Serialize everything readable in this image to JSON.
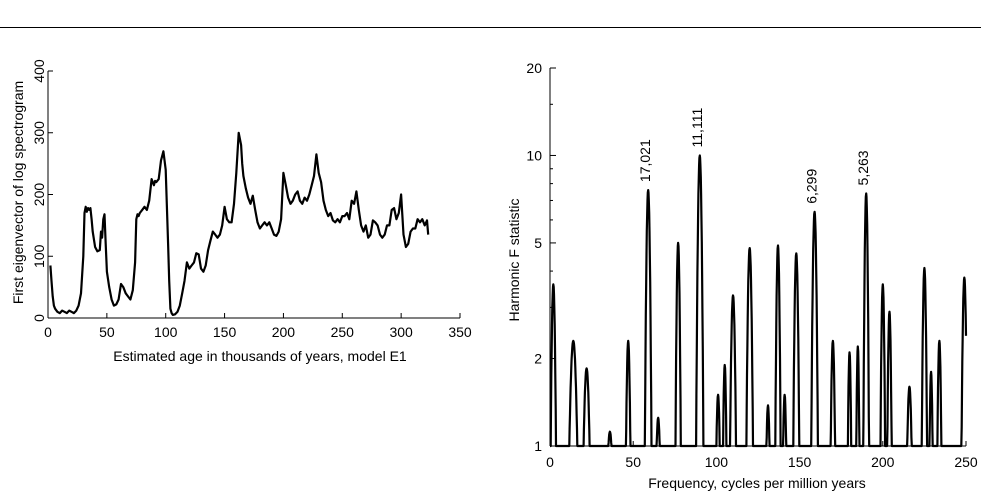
{
  "chart_data": [
    {
      "type": "line",
      "xlabel": "Estimated age in thousands of years, model E1",
      "ylabel": "First eigenvector of log spectrogram",
      "xlim": [
        0,
        350
      ],
      "ylim": [
        0,
        400
      ],
      "xticks": [
        0,
        50,
        100,
        150,
        200,
        250,
        300,
        350
      ],
      "yticks": [
        0,
        100,
        200,
        300,
        400
      ],
      "grid": false,
      "series": [
        {
          "x": [
            2,
            3,
            4,
            5,
            6,
            8,
            10,
            12,
            14,
            16,
            18,
            20,
            22,
            24,
            26,
            28,
            30,
            31,
            32,
            33,
            34,
            35,
            36,
            37,
            38,
            40,
            42,
            44,
            45,
            46,
            47,
            48,
            49,
            50,
            52,
            54,
            56,
            58,
            60,
            62,
            64,
            66,
            68,
            70,
            72,
            74,
            75,
            76,
            77,
            78,
            80,
            82,
            84,
            86,
            88,
            90,
            91,
            92,
            94,
            96,
            98,
            100,
            101,
            102,
            103,
            104,
            105,
            106,
            108,
            110,
            112,
            114,
            116,
            118,
            120,
            122,
            124,
            126,
            128,
            130,
            132,
            134,
            136,
            138,
            140,
            142,
            144,
            146,
            148,
            150,
            152,
            154,
            156,
            158,
            160,
            162,
            164,
            165,
            166,
            168,
            170,
            172,
            174,
            176,
            178,
            180,
            182,
            184,
            186,
            188,
            190,
            192,
            194,
            196,
            198,
            200,
            202,
            204,
            206,
            208,
            210,
            212,
            214,
            216,
            218,
            220,
            222,
            224,
            226,
            228,
            230,
            232,
            234,
            236,
            238,
            240,
            242,
            244,
            246,
            248,
            250,
            252,
            254,
            256,
            258,
            260,
            262,
            264,
            266,
            268,
            270,
            272,
            274,
            276,
            278,
            280,
            282,
            284,
            286,
            288,
            290,
            292,
            294,
            296,
            298,
            300,
            302,
            304,
            306,
            308,
            310,
            312,
            314,
            316,
            318,
            320,
            322,
            323
          ],
          "y": [
            85,
            60,
            35,
            20,
            15,
            10,
            8,
            12,
            10,
            8,
            12,
            10,
            8,
            12,
            20,
            40,
            100,
            170,
            180,
            172,
            178,
            175,
            178,
            160,
            140,
            115,
            108,
            110,
            140,
            130,
            160,
            168,
            120,
            75,
            50,
            30,
            20,
            22,
            30,
            55,
            50,
            40,
            35,
            30,
            45,
            90,
            160,
            168,
            165,
            170,
            175,
            180,
            175,
            190,
            225,
            215,
            222,
            220,
            225,
            255,
            270,
            240,
            180,
            120,
            60,
            15,
            8,
            5,
            6,
            10,
            20,
            40,
            60,
            90,
            80,
            85,
            90,
            105,
            103,
            80,
            75,
            85,
            110,
            125,
            140,
            135,
            130,
            135,
            150,
            180,
            160,
            155,
            155,
            185,
            235,
            300,
            280,
            250,
            230,
            210,
            195,
            185,
            198,
            175,
            155,
            145,
            150,
            155,
            150,
            155,
            145,
            135,
            133,
            140,
            160,
            235,
            215,
            195,
            185,
            190,
            200,
            205,
            190,
            185,
            195,
            190,
            200,
            215,
            230,
            265,
            235,
            220,
            190,
            175,
            165,
            170,
            158,
            155,
            160,
            155,
            165,
            165,
            170,
            160,
            190,
            185,
            205,
            175,
            150,
            140,
            150,
            130,
            135,
            158,
            155,
            150,
            135,
            130,
            135,
            150,
            150,
            175,
            178,
            160,
            170,
            200,
            135,
            115,
            120,
            140,
            145,
            145,
            160,
            155,
            160,
            150,
            158,
            135
          ]
        }
      ]
    },
    {
      "type": "line",
      "xlabel": "Frequency, cycles per million years",
      "ylabel": "Harmonic F statistic",
      "xlim": [
        0,
        250
      ],
      "ylim": [
        1,
        20
      ],
      "yscale": "log",
      "xticks": [
        0,
        50,
        100,
        150,
        200,
        250
      ],
      "yticks": [
        1,
        2,
        5,
        10,
        20
      ],
      "grid": false,
      "annotations": [
        {
          "text": "17,021",
          "x": 59,
          "y": 7.6
        },
        {
          "text": "11,111",
          "x": 90,
          "y": 10.0
        },
        {
          "text": "6,299",
          "x": 159,
          "y": 6.4
        },
        {
          "text": "5,263",
          "x": 190,
          "y": 7.4
        }
      ],
      "peaks": [
        {
          "x": 2,
          "h": 3.6,
          "w": 1.6
        },
        {
          "x": 14,
          "h": 2.3,
          "w": 2.4
        },
        {
          "x": 22,
          "h": 1.85,
          "w": 1.8
        },
        {
          "x": 36,
          "h": 1.12,
          "w": 0.9
        },
        {
          "x": 47,
          "h": 2.3,
          "w": 1.3
        },
        {
          "x": 59,
          "h": 7.6,
          "w": 2.0
        },
        {
          "x": 65,
          "h": 1.25,
          "w": 0.9
        },
        {
          "x": 77,
          "h": 5.0,
          "w": 1.6
        },
        {
          "x": 90,
          "h": 10.0,
          "w": 2.2
        },
        {
          "x": 101,
          "h": 1.5,
          "w": 1.0
        },
        {
          "x": 105,
          "h": 1.9,
          "w": 1.0
        },
        {
          "x": 110,
          "h": 3.3,
          "w": 1.8
        },
        {
          "x": 120,
          "h": 4.8,
          "w": 2.0
        },
        {
          "x": 131,
          "h": 1.38,
          "w": 0.9
        },
        {
          "x": 137,
          "h": 4.9,
          "w": 1.6
        },
        {
          "x": 141,
          "h": 1.5,
          "w": 0.9
        },
        {
          "x": 148,
          "h": 4.6,
          "w": 1.8
        },
        {
          "x": 159,
          "h": 6.4,
          "w": 2.0
        },
        {
          "x": 170,
          "h": 2.3,
          "w": 1.3
        },
        {
          "x": 180,
          "h": 2.1,
          "w": 1.0
        },
        {
          "x": 185,
          "h": 2.2,
          "w": 0.9
        },
        {
          "x": 190,
          "h": 7.4,
          "w": 1.7
        },
        {
          "x": 200,
          "h": 3.6,
          "w": 1.4
        },
        {
          "x": 204,
          "h": 2.9,
          "w": 1.3
        },
        {
          "x": 216,
          "h": 1.6,
          "w": 1.3
        },
        {
          "x": 225,
          "h": 4.1,
          "w": 1.6
        },
        {
          "x": 229,
          "h": 1.8,
          "w": 0.9
        },
        {
          "x": 234,
          "h": 2.3,
          "w": 1.2
        },
        {
          "x": 249,
          "h": 3.8,
          "w": 1.7
        }
      ]
    }
  ]
}
